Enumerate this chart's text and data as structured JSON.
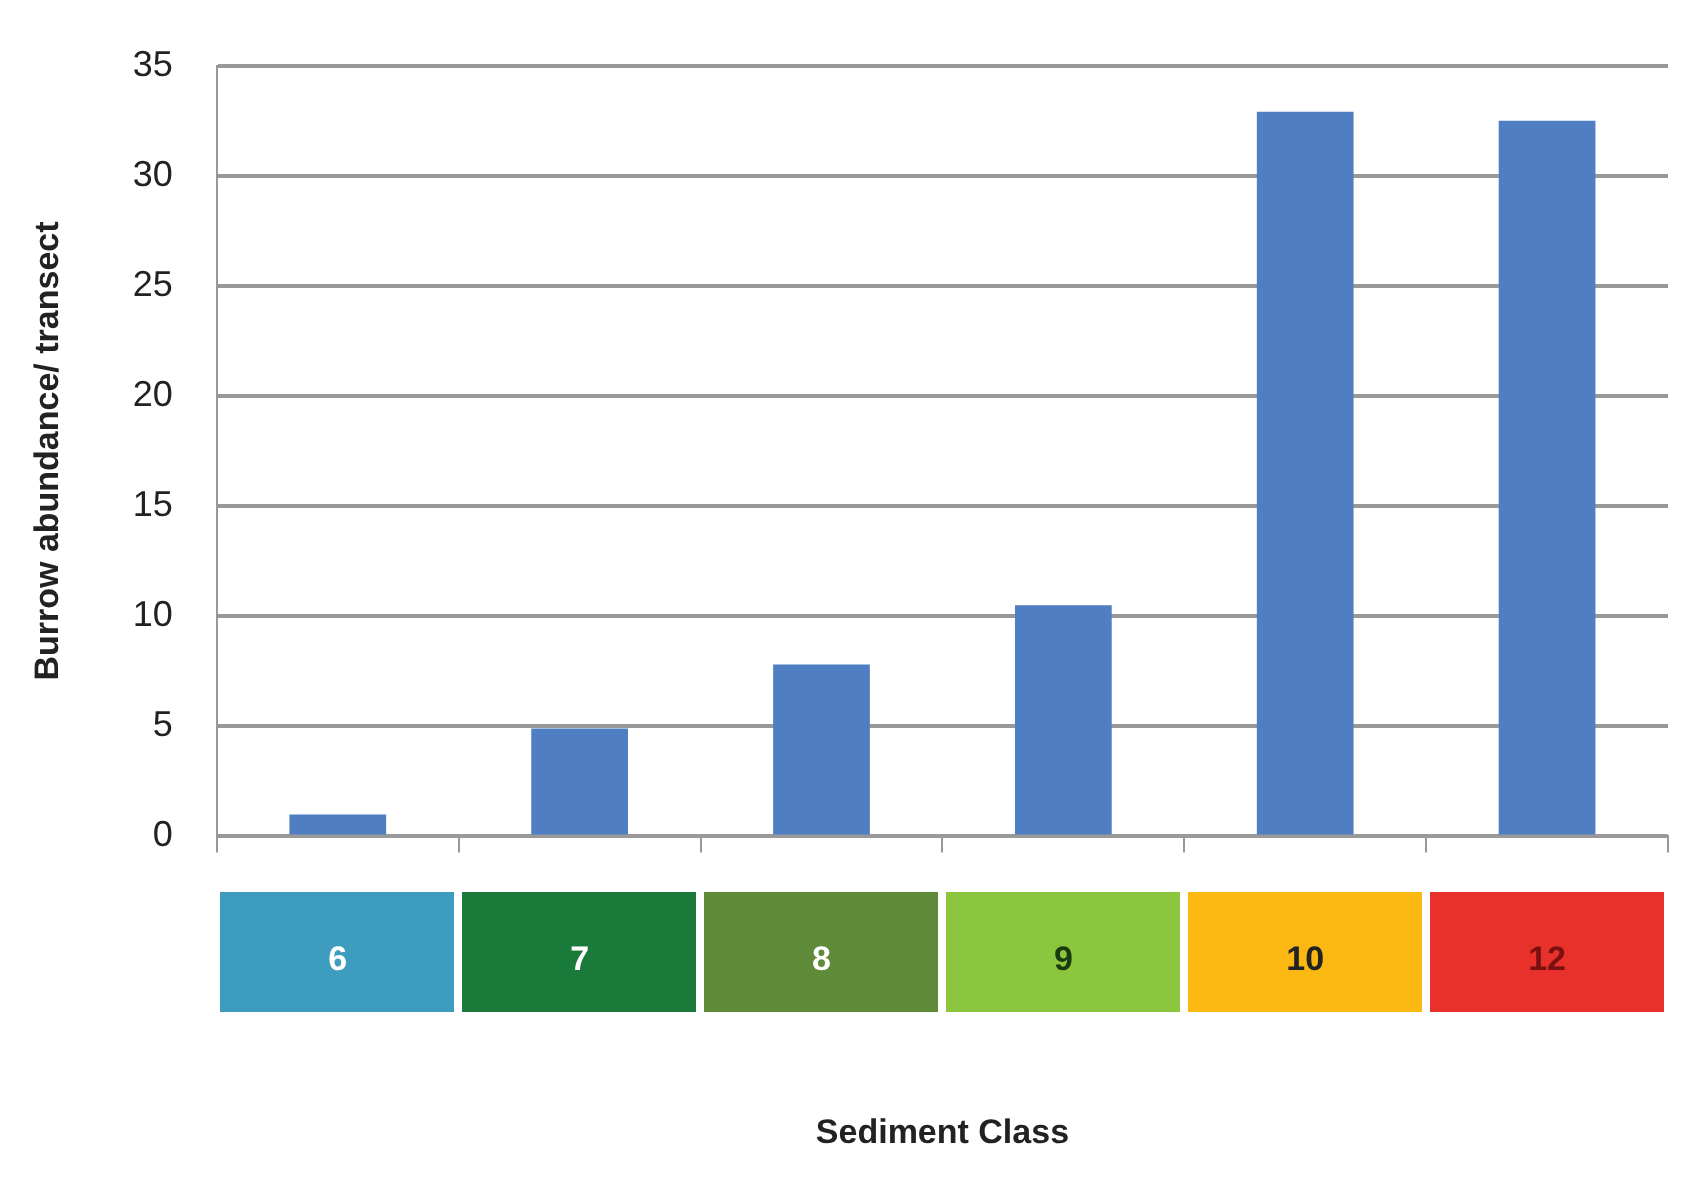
{
  "chart_data": {
    "type": "bar",
    "xlabel": "Sediment Class",
    "ylabel": "Burrow abundance/ transect",
    "categories": [
      "6",
      "7",
      "8",
      "9",
      "10",
      "12"
    ],
    "values": [
      1,
      4.9,
      7.8,
      10.5,
      32.9,
      32.5
    ],
    "color": "#4f7fc2",
    "ylim": [
      0,
      35
    ],
    "yticks": [
      0,
      5,
      10,
      15,
      20,
      25,
      30,
      35
    ],
    "grid": "y",
    "legend": false
  }
}
